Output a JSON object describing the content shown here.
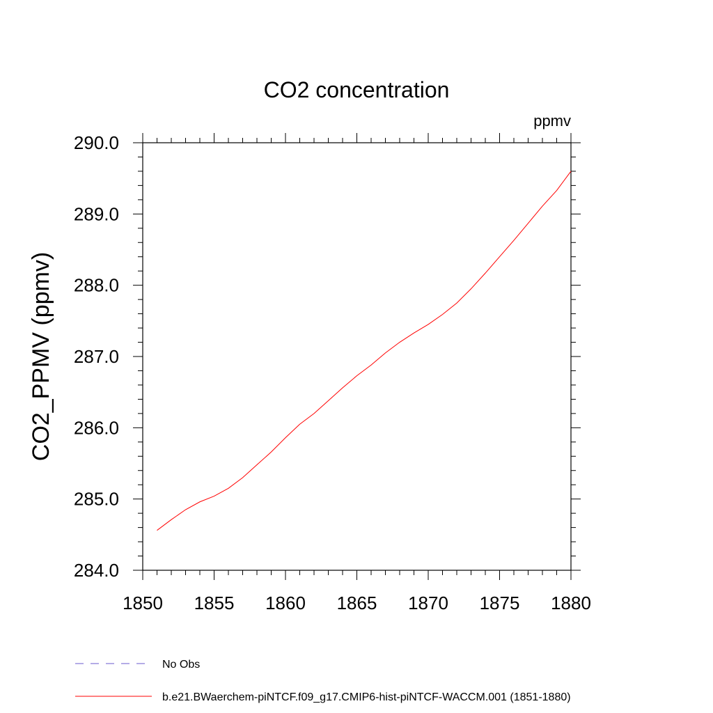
{
  "chart_data": {
    "type": "line",
    "title": "CO2 concentration",
    "units_label": "ppmv",
    "xlabel": "",
    "ylabel": "CO2_PPMV  (ppmv)",
    "xlim": [
      1850,
      1880
    ],
    "ylim": [
      284.0,
      290.0
    ],
    "x_ticks": [
      1850,
      1855,
      1860,
      1865,
      1870,
      1875,
      1880
    ],
    "x_tick_labels": [
      "1850",
      "1855",
      "1860",
      "1865",
      "1870",
      "1875",
      "1880"
    ],
    "y_ticks": [
      284.0,
      285.0,
      286.0,
      287.0,
      288.0,
      289.0,
      290.0
    ],
    "y_tick_labels": [
      "284.0",
      "285.0",
      "286.0",
      "287.0",
      "288.0",
      "289.0",
      "290.0"
    ],
    "grid": false,
    "legend_placement": "bottom",
    "series": [
      {
        "name": "No Obs",
        "color": "#6a5acd",
        "style": "dashed",
        "x": [],
        "y": []
      },
      {
        "name": "b.e21.BWaerchem-piNTCF.f09_g17.CMIP6-hist-piNTCF-WACCM.001 (1851-1880)",
        "color": "#ff0000",
        "style": "solid",
        "x": [
          1851,
          1852,
          1853,
          1854,
          1855,
          1856,
          1857,
          1858,
          1859,
          1860,
          1861,
          1862,
          1863,
          1864,
          1865,
          1866,
          1867,
          1868,
          1869,
          1870,
          1871,
          1872,
          1873,
          1874,
          1875,
          1876,
          1877,
          1878,
          1879,
          1880
        ],
        "y": [
          284.56,
          284.71,
          284.85,
          284.96,
          285.04,
          285.15,
          285.3,
          285.48,
          285.66,
          285.86,
          286.05,
          286.2,
          286.38,
          286.56,
          286.73,
          286.88,
          287.05,
          287.2,
          287.33,
          287.45,
          287.59,
          287.75,
          287.95,
          288.17,
          288.4,
          288.63,
          288.87,
          289.11,
          289.33,
          289.6
        ]
      }
    ]
  }
}
